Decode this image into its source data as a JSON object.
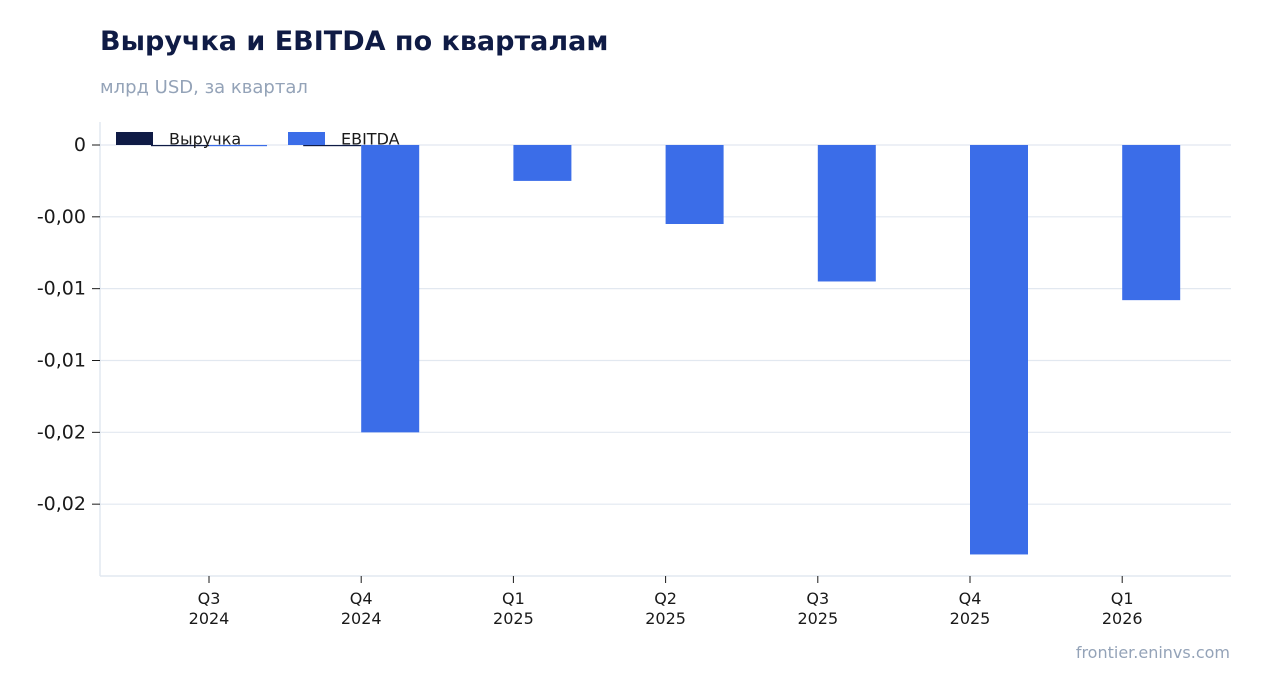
{
  "chart_data": {
    "type": "bar",
    "title": "Выручка и EBITDA по кварталам",
    "subtitle": "млрд USD, за квартал",
    "categories": [
      [
        "Q3",
        "2024"
      ],
      [
        "Q4",
        "2024"
      ],
      [
        "Q1",
        "2025"
      ],
      [
        "Q2",
        "2025"
      ],
      [
        "Q3",
        "2025"
      ],
      [
        "Q4",
        "2025"
      ],
      [
        "Q1",
        "2026"
      ]
    ],
    "series": [
      {
        "name": "Выручка",
        "color": "#0f1b45",
        "values": [
          0,
          0,
          null,
          null,
          null,
          null,
          null
        ]
      },
      {
        "name": "EBITDA",
        "color": "#3b6de8",
        "values": [
          0,
          -0.02,
          -0.0025,
          -0.0055,
          -0.0095,
          -0.0285,
          -0.0108
        ]
      }
    ],
    "ylim": [
      -0.03,
      0.0016
    ],
    "yticks": [
      {
        "value": 0,
        "label": "0"
      },
      {
        "value": -0.005,
        "label": "-0,00"
      },
      {
        "value": -0.01,
        "label": "-0,01"
      },
      {
        "value": -0.015,
        "label": "-0,01"
      },
      {
        "value": -0.02,
        "label": "-0,02"
      },
      {
        "value": -0.025,
        "label": "-0,02"
      }
    ],
    "xlabel": "",
    "ylabel": "",
    "grid": true,
    "legend_position": "top-left"
  },
  "footer": {
    "source": "frontier.eninvs.com"
  }
}
